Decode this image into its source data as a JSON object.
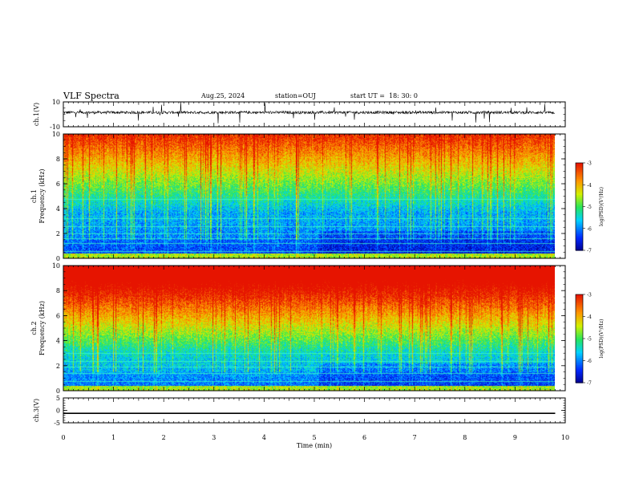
{
  "header": {
    "title": "VLF Spectra",
    "date": "Aug.25, 2024",
    "station": "station=OUJ",
    "start": "start UT =  18: 30: 0"
  },
  "chart_data": [
    {
      "type": "line",
      "panel": "ch1-waveform",
      "ylabel": "ch.1(V)",
      "ylim": [
        -10,
        10
      ],
      "yticks": [
        10,
        -10
      ],
      "x_range_min": [
        0,
        9.8
      ],
      "note": "noisy waveform centered near +1.5 V with spikes"
    },
    {
      "type": "heatmap",
      "panel": "ch1-spectrogram",
      "ylabel": "ch.1\nFrequency (kHz)",
      "ylim": [
        0,
        10
      ],
      "yticks": [
        0,
        2,
        4,
        6,
        8,
        10
      ],
      "colorbar": {
        "label": "log(PSD)(V²/Hz)",
        "range": [
          -7,
          -3
        ],
        "ticks": [
          -3,
          -4,
          -5,
          -6,
          -7
        ]
      }
    },
    {
      "type": "heatmap",
      "panel": "ch2-spectrogram",
      "ylabel": "ch.2\nFrequency (kHz)",
      "ylim": [
        0,
        10
      ],
      "yticks": [
        0,
        2,
        4,
        6,
        8,
        10
      ],
      "colorbar": {
        "label": "log(PSD)(V²/Hz)",
        "range": [
          -7,
          -3
        ],
        "ticks": [
          -3,
          -4,
          -5,
          -6,
          -7
        ]
      }
    },
    {
      "type": "line",
      "panel": "ch3-waveform",
      "ylabel": "ch.3(V)",
      "ylim": [
        -5,
        5
      ],
      "yticks": [
        5,
        0,
        -5
      ],
      "x": [
        0,
        9.8
      ],
      "y": [
        -1.2,
        -1.2
      ]
    }
  ],
  "xaxis": {
    "label": "Time (min)",
    "ticks": [
      "0",
      "1",
      "2",
      "3",
      "4",
      "5",
      "6",
      "7",
      "8",
      "9",
      "10"
    ],
    "range": [
      0,
      10
    ]
  }
}
